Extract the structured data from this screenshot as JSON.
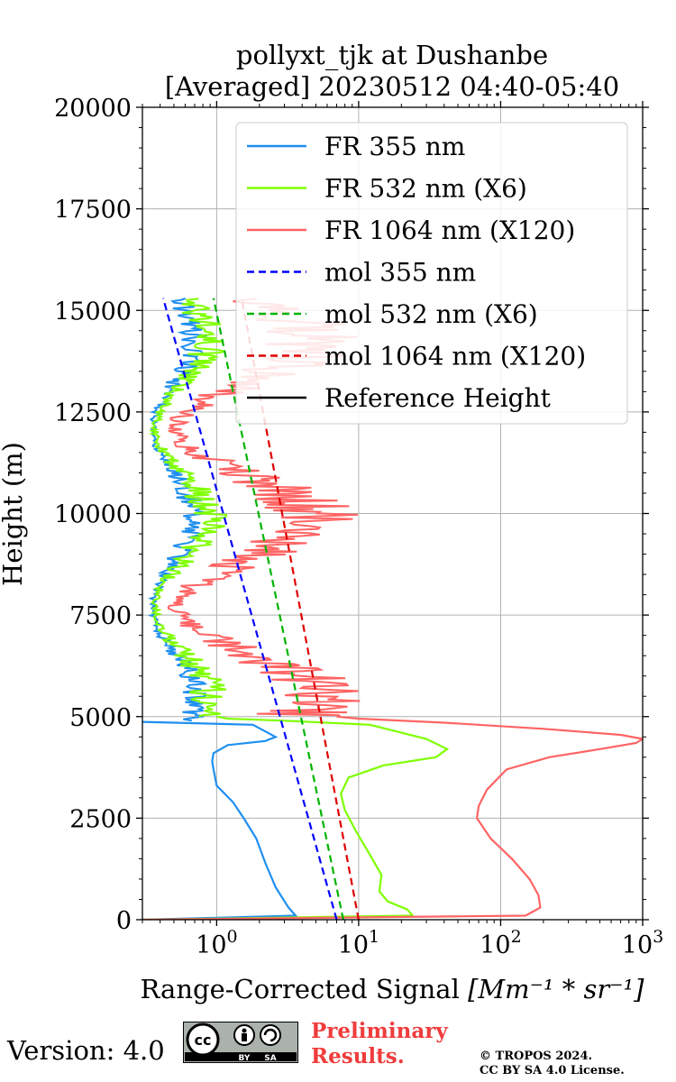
{
  "chart_data": {
    "type": "line",
    "title_line1": "pollyxt_tjk at Dushanbe",
    "title_line2": "[Averaged] 20230512 04:40-05:40",
    "xlabel_text": "Range-Corrected Signal ",
    "xlabel_math": "[Mm⁻¹ * sr⁻¹]",
    "ylabel": "Height (m)",
    "xscale": "log",
    "xlim": [
      0.3,
      1000
    ],
    "ylim": [
      0,
      20000
    ],
    "grid": true,
    "legend_position": "top-right",
    "x_ticks": [
      {
        "value": 1,
        "mant": "10",
        "exp": "0"
      },
      {
        "value": 10,
        "mant": "10",
        "exp": "1"
      },
      {
        "value": 100,
        "mant": "10",
        "exp": "2"
      },
      {
        "value": 1000,
        "mant": "10",
        "exp": "3"
      }
    ],
    "y_ticks": [
      "0",
      "2500",
      "5000",
      "7500",
      "10000",
      "12500",
      "15000",
      "17500",
      "20000"
    ],
    "series": [
      {
        "name": "FR 355 nm",
        "color": "#1f8ff0",
        "style": "solid",
        "x": [
          0.3,
          3.6,
          3.2,
          2.6,
          2.2,
          1.9,
          1.55,
          1.3,
          1.0,
          0.95,
          0.93,
          0.95,
          1.2,
          2.2,
          2.6,
          1.8,
          0.5,
          0.3
        ],
        "y": [
          0,
          100,
          300,
          800,
          1400,
          2000,
          2500,
          2900,
          3300,
          3700,
          3900,
          4100,
          4300,
          4400,
          4500,
          4800,
          4850,
          4870
        ]
      },
      {
        "name": "FR 532 nm (X6)",
        "color": "#7fff00",
        "style": "solid",
        "x": [
          0.3,
          24,
          22,
          16,
          14,
          14.5,
          12,
          9.5,
          8.0,
          7.5,
          8.5,
          15,
          35,
          42,
          30,
          12,
          3,
          1.2,
          1.0
        ],
        "y": [
          0,
          100,
          250,
          450,
          700,
          1100,
          1600,
          2200,
          2700,
          3100,
          3500,
          3800,
          4000,
          4200,
          4450,
          4800,
          4900,
          4950,
          5000
        ]
      },
      {
        "name": "FR 1064 nm (X120)",
        "color": "#ff6464",
        "style": "solid",
        "x": [
          0.3,
          150,
          190,
          185,
          160,
          120,
          85,
          68,
          70,
          80,
          110,
          220,
          500,
          900,
          1000,
          700,
          200,
          40,
          10,
          7
        ],
        "y": [
          0,
          100,
          300,
          600,
          1000,
          1500,
          2000,
          2500,
          2800,
          3200,
          3700,
          4000,
          4200,
          4350,
          4450,
          4550,
          4700,
          4850,
          4950,
          5000
        ]
      },
      {
        "name": "mol 355 nm",
        "color": "#0000ff",
        "style": "dashed",
        "x": [
          7.0,
          0.42
        ],
        "y": [
          0,
          15300
        ]
      },
      {
        "name": "mol 532 nm (X6)",
        "color": "#00b400",
        "style": "dashed",
        "x": [
          7.8,
          0.95
        ],
        "y": [
          0,
          15300
        ]
      },
      {
        "name": "mol 1064 nm (X120)",
        "color": "#e00000",
        "style": "dashed",
        "x": [
          10.0,
          1.5
        ],
        "y": [
          0,
          15300
        ]
      },
      {
        "name": "Reference Height",
        "color": "#000000",
        "style": "solid",
        "x": [],
        "y": []
      }
    ],
    "noise": [
      {
        "series": 0,
        "y": [
          4900,
          15300
        ],
        "xmin": 0.3,
        "xmax": 0.9
      },
      {
        "series": 1,
        "y": [
          5000,
          15300
        ],
        "xmin": 0.3,
        "xmax": 1.2
      },
      {
        "series": 2,
        "y": [
          5000,
          15300
        ],
        "xmin": 0.3,
        "xmax": 11
      }
    ]
  },
  "footer": {
    "version": "Version: 4.0",
    "cc_left": "cc",
    "cc_by": "BY",
    "cc_sa": "SA",
    "preliminary_line1": "Preliminary",
    "preliminary_line2": "Results.",
    "copyright_line1": "© TROPOS 2024.",
    "copyright_line2": "CC BY SA 4.0 License."
  }
}
